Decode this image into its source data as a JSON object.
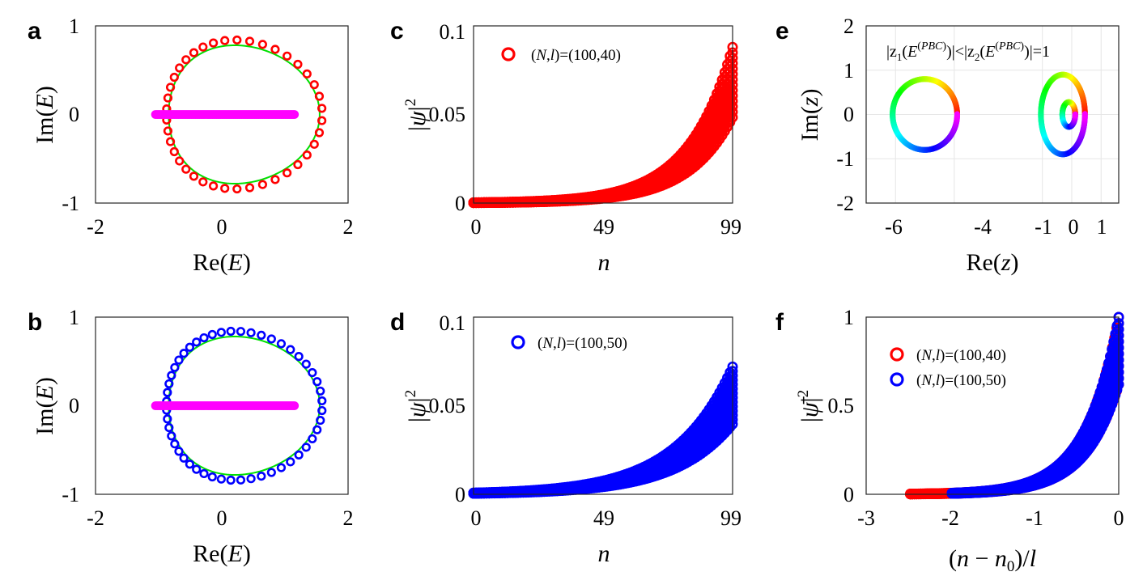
{
  "chart_data": [
    {
      "id": "a",
      "panel_label": "a",
      "type": "scatter",
      "xlabel": "Re(E)",
      "ylabel": "Im(E)",
      "xlim": [
        -2,
        2
      ],
      "ylim": [
        -1,
        1
      ],
      "xticks": [
        "-2",
        "0",
        "2"
      ],
      "yticks": [
        "-1",
        "0",
        "1"
      ],
      "grid": false,
      "series": [
        {
          "kind": "curve-loop",
          "color": "#00e000",
          "cx": 0.2,
          "rx": 1.3,
          "ry": 0.78
        },
        {
          "kind": "ring-markers-loop",
          "color": "#ff0000",
          "count": 40,
          "cx": 0.2,
          "rx": 1.34,
          "ry": 0.84
        },
        {
          "kind": "ring-markers-line",
          "color": "#ff00ff",
          "count": 100,
          "x_range": [
            -1.05,
            1.15
          ],
          "y": 0
        }
      ]
    },
    {
      "id": "b",
      "panel_label": "b",
      "type": "scatter",
      "xlabel": "Re(E)",
      "ylabel": "Im(E)",
      "xlim": [
        -2,
        2
      ],
      "ylim": [
        -1,
        1
      ],
      "xticks": [
        "-2",
        "0",
        "2"
      ],
      "yticks": [
        "-1",
        "0",
        "1"
      ],
      "grid": false,
      "series": [
        {
          "kind": "curve-loop",
          "color": "#00e000",
          "cx": 0.2,
          "rx": 1.3,
          "ry": 0.78
        },
        {
          "kind": "ring-markers-loop",
          "color": "#0000ff",
          "count": 50,
          "cx": 0.2,
          "rx": 1.34,
          "ry": 0.84
        },
        {
          "kind": "ring-markers-line",
          "color": "#ff00ff",
          "count": 100,
          "x_range": [
            -1.05,
            1.15
          ],
          "y": 0
        }
      ]
    },
    {
      "id": "c",
      "panel_label": "c",
      "type": "scatter",
      "xlabel": "n",
      "ylabel": "|ψ|²",
      "xlim": [
        0,
        99
      ],
      "ylim": [
        0,
        0.1
      ],
      "xticks": [
        "0",
        "49",
        "99"
      ],
      "yticks": [
        "0",
        "0.05",
        "0.1"
      ],
      "grid": false,
      "legend": {
        "position": "top-left",
        "entries": [
          {
            "label": "(N,l)=(100,40)",
            "color": "#ff0000"
          }
        ]
      },
      "series": [
        {
          "name": "(N,l)=(100,40)",
          "color": "#ff0000",
          "kind": "exp-band",
          "n": 100,
          "y_max": 0.088,
          "decay_l": 17
        }
      ]
    },
    {
      "id": "d",
      "panel_label": "d",
      "type": "scatter",
      "xlabel": "n",
      "ylabel": "|ψ|²",
      "xlim": [
        0,
        99
      ],
      "ylim": [
        0,
        0.1
      ],
      "xticks": [
        "0",
        "49",
        "99"
      ],
      "yticks": [
        "0",
        "0.05",
        "0.1"
      ],
      "grid": false,
      "legend": {
        "position": "top-left",
        "entries": [
          {
            "label": "(N,l)=(100,50)",
            "color": "#0000ff"
          }
        ]
      },
      "series": [
        {
          "name": "(N,l)=(100,50)",
          "color": "#0000ff",
          "kind": "exp-band",
          "n": 100,
          "y_max": 0.072,
          "decay_l": 22
        }
      ]
    },
    {
      "id": "e",
      "panel_label": "e",
      "type": "line",
      "xlabel": "Re(z)",
      "ylabel": "Im(z)",
      "xlim": [
        -7,
        1.6
      ],
      "ylim": [
        -2,
        2
      ],
      "xticks": [
        "-6",
        "-4",
        "-1",
        "0",
        "1"
      ],
      "xtick_values": [
        -6,
        -4,
        -1,
        0,
        1
      ],
      "yticks": [
        "-2",
        "-1",
        "0",
        "1",
        "2"
      ],
      "grid": true,
      "annotation": "|z1(E(PBC))|<|z2(E(PBC))|=1",
      "series": [
        {
          "kind": "rainbow-loop",
          "cx": -5.0,
          "rx": 1.1,
          "ry": 0.8
        },
        {
          "kind": "rainbow-loop",
          "cx": -0.3,
          "rx": 0.75,
          "ry": 0.9
        },
        {
          "kind": "rainbow-loop",
          "cx": -0.1,
          "rx": 0.22,
          "ry": 0.28
        }
      ]
    },
    {
      "id": "f",
      "panel_label": "f",
      "type": "scatter",
      "xlabel": "(n − n0)/l",
      "ylabel": "|ψ̄|²",
      "xlim": [
        -3,
        0
      ],
      "ylim": [
        0,
        1
      ],
      "xticks": [
        "-3",
        "-2",
        "-1",
        "0"
      ],
      "yticks": [
        "0",
        "0.5",
        "1"
      ],
      "grid": false,
      "legend": {
        "position": "top-left",
        "entries": [
          {
            "label": "(N,l)=(100,40)",
            "color": "#ff0000"
          },
          {
            "label": "(N,l)=(100,50)",
            "color": "#0000ff"
          }
        ]
      },
      "series": [
        {
          "name": "(N,l)=(100,40)",
          "color": "#ff0000",
          "kind": "norm-band",
          "x_min": -2.475,
          "decay": 2.5
        },
        {
          "name": "(N,l)=(100,50)",
          "color": "#0000ff",
          "kind": "norm-band",
          "x_min": -1.98,
          "decay": 2.5
        }
      ]
    }
  ]
}
